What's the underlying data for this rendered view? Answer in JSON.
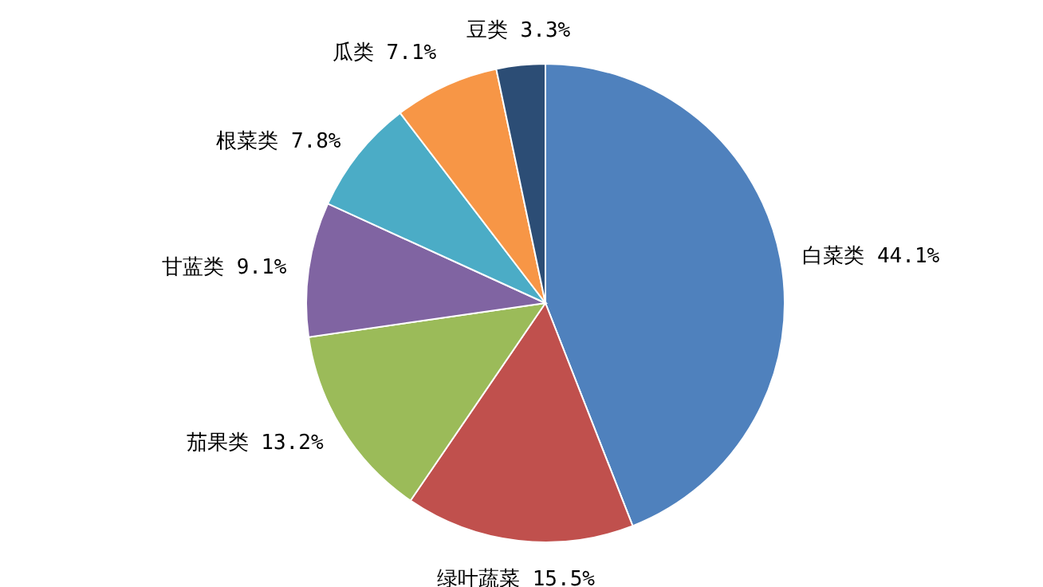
{
  "chart_data": {
    "type": "pie",
    "categories": [
      "白菜类",
      "绿叶蔬菜",
      "茄果类",
      "甘蓝类",
      "根菜类",
      "瓜类",
      "豆类"
    ],
    "values": [
      44.1,
      15.5,
      13.2,
      9.1,
      7.8,
      7.1,
      3.3
    ],
    "value_labels": [
      "44.1%",
      "15.5%",
      "13.2%",
      "9.1%",
      "7.8%",
      "7.1%",
      "3.3%"
    ],
    "colors": [
      "#4f81bd",
      "#c0504d",
      "#9bbb59",
      "#8064a2",
      "#4bacc6",
      "#f79646",
      "#2c4d75"
    ]
  }
}
